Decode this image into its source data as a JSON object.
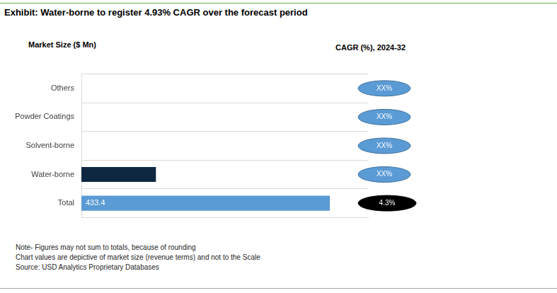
{
  "chart_data": {
    "type": "bar",
    "orientation": "horizontal",
    "title": "Exhibit: Water-borne to register 4.93% CAGR over the forecast period",
    "xlabel": "Market Size ($ Mn)",
    "categories": [
      "Others",
      "Powder Coatings",
      "Solvent-borne",
      "Water-borne",
      "Total"
    ],
    "values": [
      null,
      null,
      null,
      130,
      433.4
    ],
    "value_labels": [
      null,
      null,
      null,
      null,
      "433.4"
    ],
    "data_labels": true,
    "colors": [
      "#0e2841",
      "#0e2841",
      "#0e2841",
      "#0e2841",
      "#5b9bd5"
    ],
    "xlim": [
      0,
      500
    ],
    "tick_labels": "y",
    "grid": true,
    "cagr_title": "CAGR (%), 2024-32",
    "cagr_values": [
      null,
      null,
      null,
      null,
      4.3
    ],
    "cagr_labels": [
      "XX%",
      "XX%",
      "XX%",
      "XX%",
      "4.3%"
    ],
    "annotations": [
      "Note- Figures may not sum to totals, because of rounding",
      "Chart values are depictive of market size (revenue terms) and not to the Scale",
      "Source: USD Analytics Proprietary Databases"
    ]
  }
}
